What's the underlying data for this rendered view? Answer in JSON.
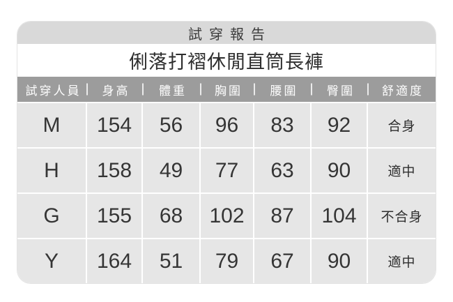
{
  "chart_data": {
    "type": "table",
    "title": "試穿報告",
    "subtitle": "俐落打褶休閒直筒長褲",
    "columns": [
      "試穿人員",
      "身高",
      "體重",
      "胸圍",
      "腰圍",
      "臀圍",
      "舒適度"
    ],
    "rows": [
      [
        "M",
        "154",
        "56",
        "96",
        "83",
        "92",
        "合身"
      ],
      [
        "H",
        "158",
        "49",
        "77",
        "63",
        "90",
        "適中"
      ],
      [
        "G",
        "155",
        "68",
        "102",
        "87",
        "104",
        "不合身"
      ],
      [
        "Y",
        "164",
        "51",
        "79",
        "67",
        "90",
        "適中"
      ]
    ]
  },
  "colors": {
    "title_bar_bg": "#d9d9d9",
    "header_bg": "#9c9c9c",
    "header_text": "#ffffff",
    "cell_bg": "#e6e6e6",
    "grid_line": "#ffffff",
    "body_text": "#3a3a3a"
  }
}
